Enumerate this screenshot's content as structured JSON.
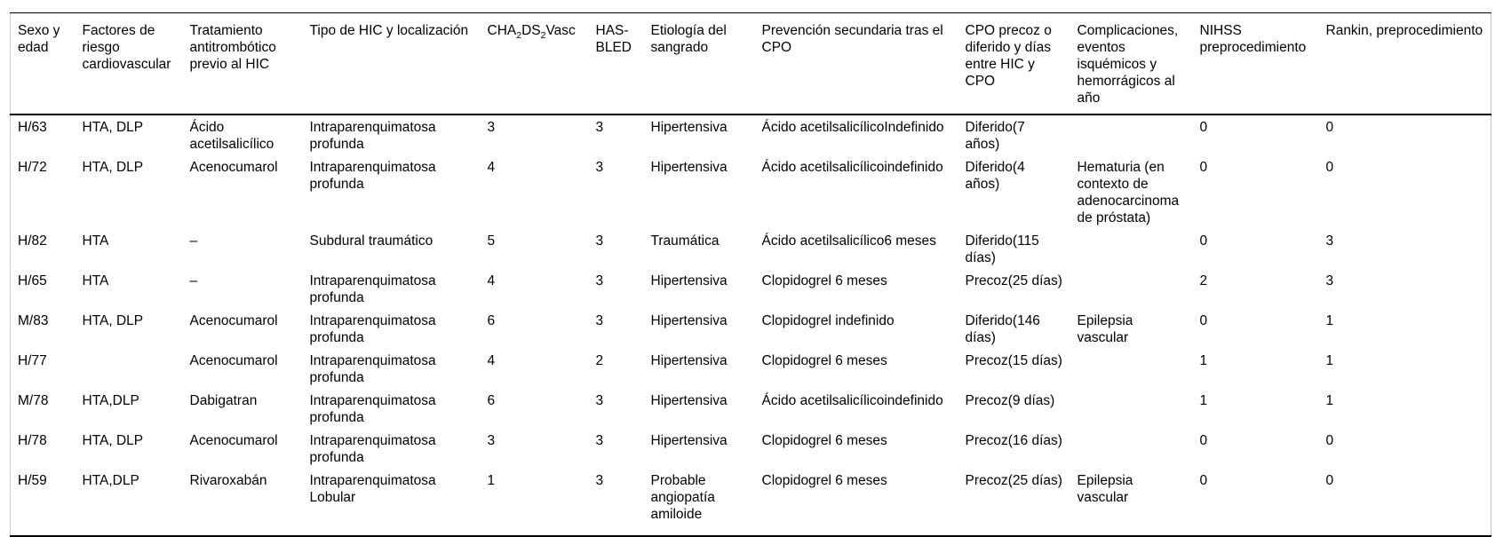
{
  "colors": {
    "background": "#ffffff",
    "text": "#000000",
    "rule_dark": "#000000",
    "rule_light": "#c8c8c8"
  },
  "table": {
    "columns": [
      "Sexo y edad",
      "Factores de riesgo cardiovascular",
      "Tratamiento antitrombótico previo al HIC",
      "Tipo de HIC y localización",
      {
        "pre": "CHA",
        "sub_a": "2",
        "mid": "DS",
        "sub_b": "2",
        "post": "Vasc"
      },
      "HAS-BLED",
      "Etiología del sangrado",
      "Prevención secundaria tras el CPO",
      "CPO precoz o diferido y días entre HIC y CPO",
      "Complicaciones, eventos isquémicos y hemorrágicos al año",
      "NIHSS preprocedimiento",
      "Rankin, preprocedimiento"
    ],
    "rows": [
      [
        "H/63",
        "HTA, DLP",
        "Ácido acetilsalicílico",
        "Intraparenquimatosa profunda",
        "3",
        "3",
        "Hipertensiva",
        "Ácido acetilsalicílicoIndefinido",
        "Diferido(7 años)",
        "",
        "0",
        "0"
      ],
      [
        "H/72",
        "HTA, DLP",
        "Acenocumarol",
        "Intraparenquimatosa profunda",
        "4",
        "3",
        "Hipertensiva",
        "Ácido acetilsalicílicoindefinido",
        "Diferido(4 años)",
        "Hematuria (en contexto de adenocarcinoma de próstata)",
        "0",
        "0"
      ],
      [
        "H/82",
        "HTA",
        "–",
        "Subdural traumático",
        "5",
        "3",
        "Traumática",
        "Ácido acetilsalicílico6 meses",
        "Diferido(115 días)",
        "",
        "0",
        "3"
      ],
      [
        "H/65",
        "HTA",
        "–",
        "Intraparenquimatosa profunda",
        "4",
        "3",
        "Hipertensiva",
        "Clopidogrel 6 meses",
        "Precoz(25 días)",
        "",
        "2",
        "3"
      ],
      [
        "M/83",
        "HTA, DLP",
        "Acenocumarol",
        "Intraparenquimatosa profunda",
        "6",
        "3",
        "Hipertensiva",
        "Clopidogrel indefinido",
        "Diferido(146 días)",
        "Epilepsia vascular",
        "0",
        "1"
      ],
      [
        "H/77",
        "",
        "Acenocumarol",
        "Intraparenquimatosa profunda",
        "4",
        "2",
        "Hipertensiva",
        "Clopidogrel 6 meses",
        "Precoz(15 días)",
        "",
        "1",
        "1"
      ],
      [
        "M/78",
        "HTA,DLP",
        "Dabigatran",
        "Intraparenquimatosa profunda",
        "6",
        "3",
        "Hipertensiva",
        "Ácido acetilsalicílicoindefinido",
        "Precoz(9 días)",
        "",
        "1",
        "1"
      ],
      [
        "H/78",
        "HTA, DLP",
        "Acenocumarol",
        "Intraparenquimatosa profunda",
        "3",
        "3",
        "Hipertensiva",
        "Clopidogrel 6 meses",
        "Precoz(16 días)",
        "",
        "0",
        "0"
      ],
      [
        "H/59",
        "HTA,DLP",
        "Rivaroxabán",
        "Intraparenquimatosa Lobular",
        "1",
        "3",
        "Probable angiopatía amiloide",
        "Clopidogrel 6 meses",
        "Precoz(25 días)",
        "Epilepsia vascular",
        "0",
        "0"
      ]
    ]
  }
}
